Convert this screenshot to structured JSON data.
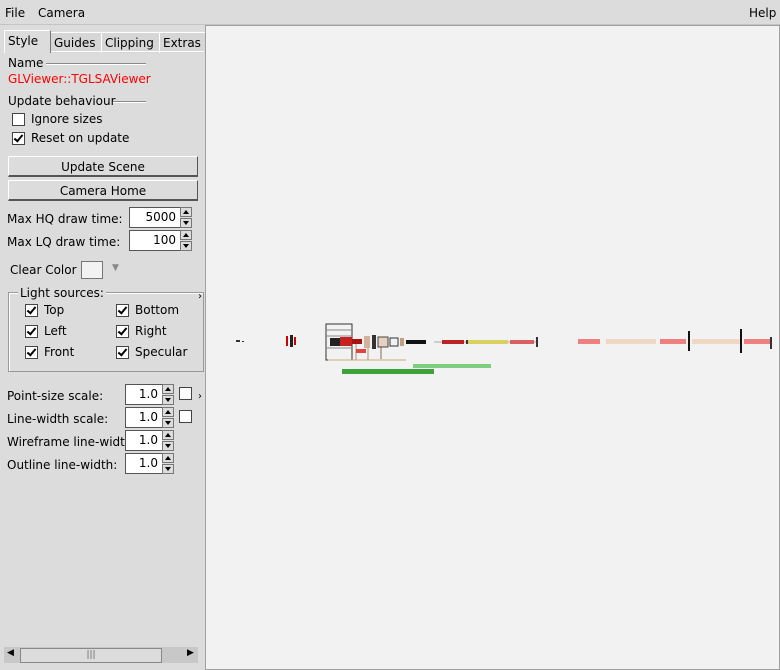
{
  "menubar": {
    "file": "File",
    "camera": "Camera",
    "help": "Help"
  },
  "tabs": [
    {
      "label": "Style"
    },
    {
      "label": "Guides"
    },
    {
      "label": "Clipping"
    },
    {
      "label": "Extras"
    }
  ],
  "name_section": {
    "heading": "Name",
    "value": "GLViewer::TGLSAViewer",
    "value_color": "#ff0000"
  },
  "update_section": {
    "heading": "Update behaviour",
    "ignore_sizes": {
      "label": "Ignore sizes",
      "checked": false
    },
    "reset_on_update": {
      "label": "Reset on update",
      "checked": true
    }
  },
  "buttons": {
    "update_scene": "Update Scene",
    "camera_home": "Camera Home"
  },
  "draw_time": {
    "max_hq": {
      "label": "Max HQ draw time:",
      "value": "5000"
    },
    "max_lq": {
      "label": "Max LQ draw time:",
      "value": "100"
    }
  },
  "clear_color": {
    "label": "Clear Color",
    "color": "#f2f2f2"
  },
  "light_sources": {
    "title": "Light sources:",
    "items": [
      {
        "label": "Top",
        "checked": true
      },
      {
        "label": "Bottom",
        "checked": true
      },
      {
        "label": "Left",
        "checked": true
      },
      {
        "label": "Right",
        "checked": true
      },
      {
        "label": "Front",
        "checked": true
      },
      {
        "label": "Specular",
        "checked": true
      }
    ]
  },
  "scales": {
    "point_size": {
      "label": "Point-size scale:",
      "value": "1.0",
      "checked": false
    },
    "line_width": {
      "label": "Line-width scale:",
      "value": "1.0",
      "checked": false
    },
    "wireframe": {
      "label": "Wireframe line-width:",
      "value": "1.0"
    },
    "outline": {
      "label": "Outline line-width:",
      "value": "1.0"
    }
  },
  "scrollbar": {
    "thumb_glyph": "|||"
  },
  "viewer": {
    "background": "#f2f2f2"
  }
}
